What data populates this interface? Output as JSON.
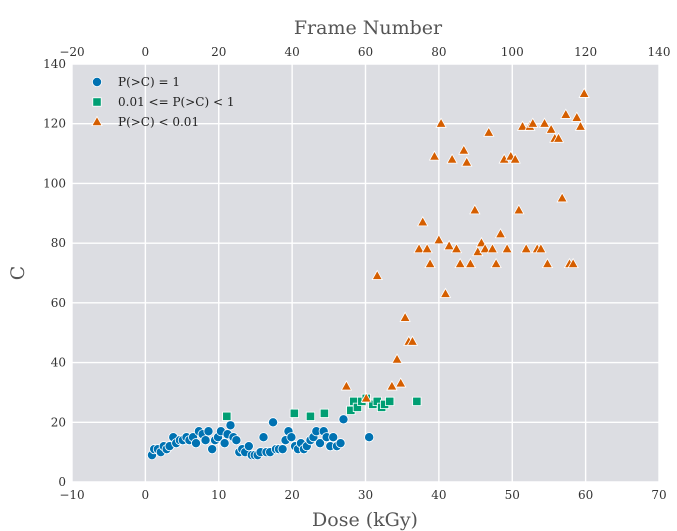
{
  "chart_data": {
    "type": "scatter",
    "title": "",
    "xlabel": "Dose (kGy)",
    "ylabel": "C",
    "top_xlabel": "Frame Number",
    "xlim": [
      -10,
      70
    ],
    "ylim": [
      0,
      140
    ],
    "top_xlim": [
      -20,
      140
    ],
    "x_ticks": [
      -10,
      0,
      10,
      20,
      30,
      40,
      50,
      60,
      70
    ],
    "y_ticks": [
      0,
      20,
      40,
      60,
      80,
      100,
      120,
      140
    ],
    "top_x_ticks": [
      -20,
      0,
      20,
      40,
      60,
      80,
      100,
      120,
      140
    ],
    "grid": true,
    "legend_position": "top-left",
    "series": [
      {
        "name": "P(>C) = 1",
        "marker": "circle",
        "color": "#0072b2",
        "points": [
          [
            0.9,
            9
          ],
          [
            1.2,
            11
          ],
          [
            1.7,
            11
          ],
          [
            2.1,
            10
          ],
          [
            2.5,
            12
          ],
          [
            2.9,
            11
          ],
          [
            3.3,
            12
          ],
          [
            3.8,
            15
          ],
          [
            4.2,
            13
          ],
          [
            4.7,
            14
          ],
          [
            5.1,
            14
          ],
          [
            5.6,
            15
          ],
          [
            6.0,
            14
          ],
          [
            6.5,
            15
          ],
          [
            6.9,
            13
          ],
          [
            7.3,
            17
          ],
          [
            7.8,
            16
          ],
          [
            8.2,
            14
          ],
          [
            8.6,
            17
          ],
          [
            9.1,
            11
          ],
          [
            9.5,
            14
          ],
          [
            9.9,
            15
          ],
          [
            10.3,
            17
          ],
          [
            10.8,
            13
          ],
          [
            11.2,
            16
          ],
          [
            11.6,
            19
          ],
          [
            12.0,
            15
          ],
          [
            12.4,
            14
          ],
          [
            12.8,
            10
          ],
          [
            13.2,
            11
          ],
          [
            13.6,
            10
          ],
          [
            14.1,
            12
          ],
          [
            14.5,
            9
          ],
          [
            14.9,
            9
          ],
          [
            15.3,
            9
          ],
          [
            15.7,
            10
          ],
          [
            16.1,
            15
          ],
          [
            16.5,
            10
          ],
          [
            17.0,
            10
          ],
          [
            17.4,
            20
          ],
          [
            17.8,
            11
          ],
          [
            18.2,
            11
          ],
          [
            18.7,
            11
          ],
          [
            19.1,
            14
          ],
          [
            19.5,
            17
          ],
          [
            19.9,
            15
          ],
          [
            20.4,
            12
          ],
          [
            20.8,
            11
          ],
          [
            21.2,
            13
          ],
          [
            21.6,
            11
          ],
          [
            22.0,
            12
          ],
          [
            22.5,
            14
          ],
          [
            22.9,
            15
          ],
          [
            23.3,
            17
          ],
          [
            23.8,
            13
          ],
          [
            24.3,
            17
          ],
          [
            24.7,
            15
          ],
          [
            25.2,
            12
          ],
          [
            25.6,
            15
          ],
          [
            26.1,
            12
          ],
          [
            26.6,
            13
          ],
          [
            27.0,
            21
          ],
          [
            30.5,
            15
          ]
        ]
      },
      {
        "name": "0.01 <= P(>C) < 1",
        "marker": "square",
        "color": "#009e73",
        "points": [
          [
            11.1,
            22
          ],
          [
            20.3,
            23
          ],
          [
            22.5,
            22
          ],
          [
            24.4,
            23
          ],
          [
            28.0,
            24
          ],
          [
            28.4,
            27
          ],
          [
            28.9,
            25
          ],
          [
            29.5,
            27
          ],
          [
            30.1,
            28
          ],
          [
            31.0,
            26
          ],
          [
            31.6,
            27
          ],
          [
            32.2,
            25
          ],
          [
            32.6,
            26
          ],
          [
            33.3,
            27
          ],
          [
            37.0,
            27
          ]
        ]
      },
      {
        "name": "P(>C) < 0.01",
        "marker": "triangle",
        "color": "#d55e00",
        "points": [
          [
            27.4,
            32
          ],
          [
            30.1,
            28
          ],
          [
            31.6,
            69
          ],
          [
            33.6,
            32
          ],
          [
            34.3,
            41
          ],
          [
            34.8,
            33
          ],
          [
            35.4,
            55
          ],
          [
            35.9,
            47
          ],
          [
            36.4,
            47
          ],
          [
            37.3,
            78
          ],
          [
            37.8,
            87
          ],
          [
            38.4,
            78
          ],
          [
            38.8,
            73
          ],
          [
            39.4,
            109
          ],
          [
            40.0,
            81
          ],
          [
            40.3,
            120
          ],
          [
            40.9,
            63
          ],
          [
            41.4,
            79
          ],
          [
            41.8,
            108
          ],
          [
            42.4,
            78
          ],
          [
            42.9,
            73
          ],
          [
            43.4,
            111
          ],
          [
            43.8,
            107
          ],
          [
            44.3,
            73
          ],
          [
            44.9,
            91
          ],
          [
            45.3,
            77
          ],
          [
            45.8,
            80
          ],
          [
            46.3,
            78
          ],
          [
            46.8,
            117
          ],
          [
            47.3,
            78
          ],
          [
            47.8,
            73
          ],
          [
            48.4,
            83
          ],
          [
            48.9,
            108
          ],
          [
            49.3,
            78
          ],
          [
            49.8,
            109
          ],
          [
            50.4,
            108
          ],
          [
            50.9,
            91
          ],
          [
            51.4,
            119
          ],
          [
            51.9,
            78
          ],
          [
            52.4,
            119
          ],
          [
            52.8,
            120
          ],
          [
            53.4,
            78
          ],
          [
            53.9,
            78
          ],
          [
            54.4,
            120
          ],
          [
            54.8,
            73
          ],
          [
            55.3,
            118
          ],
          [
            55.8,
            115
          ],
          [
            56.3,
            115
          ],
          [
            56.8,
            95
          ],
          [
            57.3,
            123
          ],
          [
            57.8,
            73
          ],
          [
            58.3,
            73
          ],
          [
            58.8,
            122
          ],
          [
            59.3,
            119
          ],
          [
            59.8,
            130
          ]
        ]
      }
    ]
  }
}
